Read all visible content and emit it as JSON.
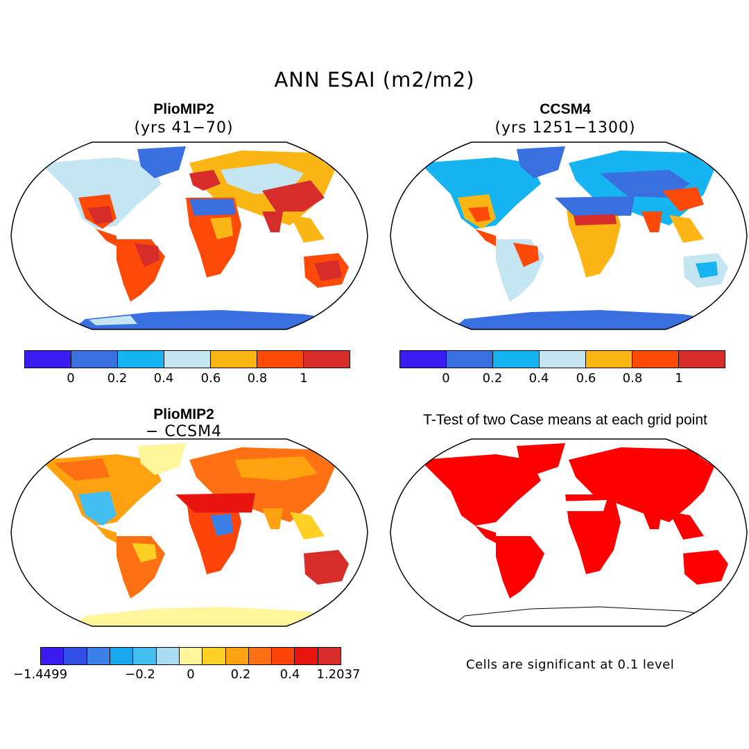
{
  "main_title": "ANN ESAI (m2/m2)",
  "colors": {
    "abs_palette": [
      "#3a1cf0",
      "#3a6fe0",
      "#16b4f0",
      "#c4e6f2",
      "#fbb515",
      "#fe4a08",
      "#d62d2b"
    ],
    "diff_palette": [
      "#3a1cf0",
      "#2f4fe6",
      "#3a80e6",
      "#18a8f0",
      "#44bdf0",
      "#a9dcf2",
      "#fff59a",
      "#fed025",
      "#fea30f",
      "#fe7014",
      "#fe4408",
      "#e8140e",
      "#d62d2b"
    ],
    "significant": "#ff0000",
    "ocean": "#ffffff",
    "coast": "#000000"
  },
  "panels": {
    "top_left": {
      "title": "PlioMIP2",
      "subtitle": "(yrs 41−70)"
    },
    "top_right": {
      "title": "CCSM4",
      "subtitle": "(yrs 1251−1300)"
    },
    "bottom_left": {
      "title": "PlioMIP2",
      "subtitle": "− CCSM4"
    },
    "bottom_right": {
      "title": "T-Test of two Case means at each grid point",
      "subtitle": ""
    }
  },
  "colorbars": {
    "abs_ticks": [
      "0",
      "0.2",
      "0.4",
      "0.6",
      "0.8",
      "1"
    ],
    "diff_ticks": [
      "−1.4499",
      "−0.2",
      "0",
      "0.2",
      "0.4",
      "1.2037"
    ]
  },
  "footnote": "Cells are significant at 0.1 level"
}
